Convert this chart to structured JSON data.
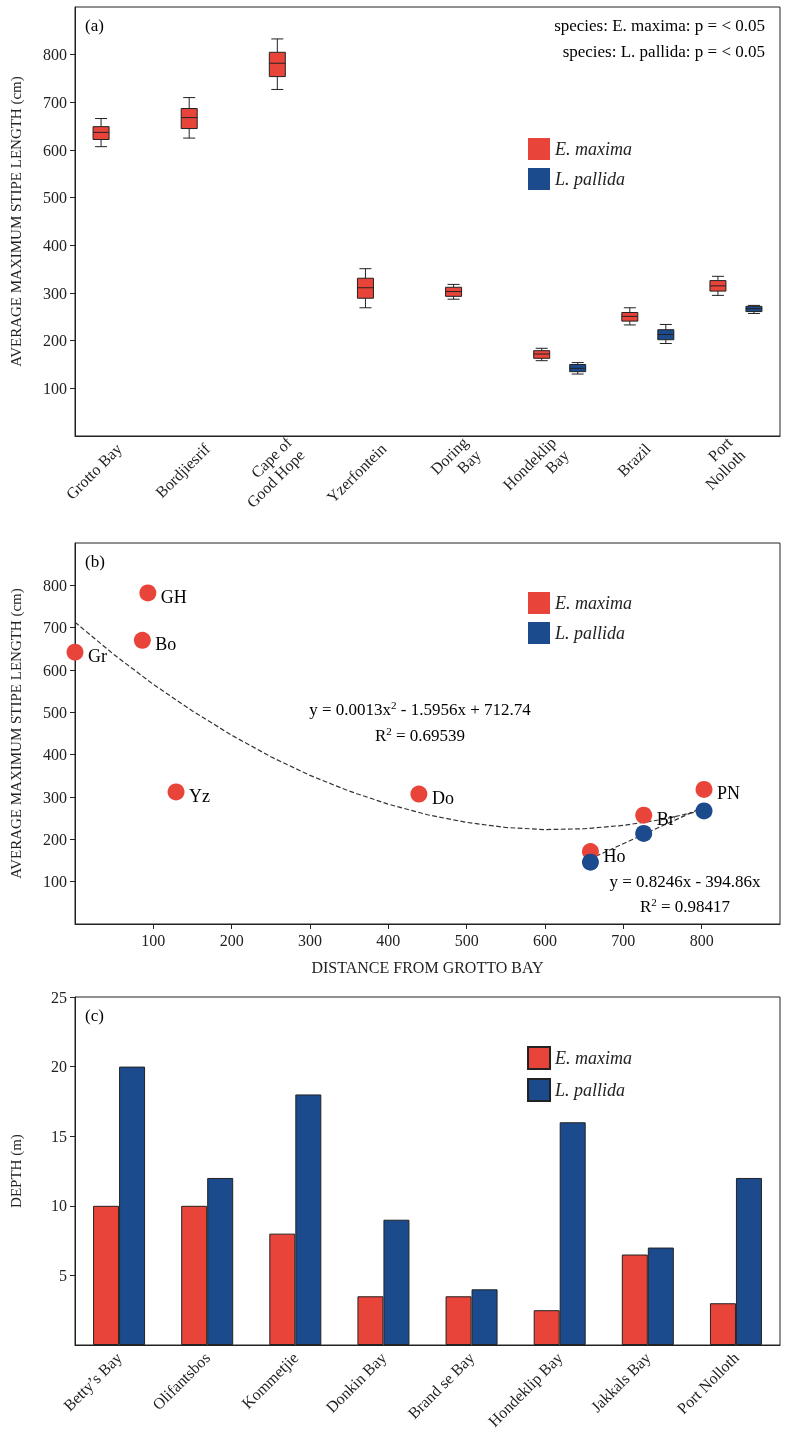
{
  "chart_data": [
    {
      "type": "box",
      "ylabel": "AVERAGE MAXIMUM STIPE LENGTH (cm)",
      "categories": [
        "Grotto Bay",
        "Bordjiesrif",
        "Cape of\nGood Hope",
        "Yzerfontein",
        "Doring\nBay",
        "Hondeklip\nBay",
        "Brazil",
        "Port\nNolloth"
      ],
      "series": [
        {
          "name": "E. maxima",
          "color": "#e8443a",
          "boxes": [
            {
              "low": 607,
              "q1": 622,
              "median": 637,
              "q3": 649,
              "high": 666
            },
            {
              "low": 625,
              "q1": 645,
              "median": 668,
              "q3": 687,
              "high": 710
            },
            {
              "low": 727,
              "q1": 754,
              "median": 782,
              "q3": 805,
              "high": 833
            },
            {
              "low": 269,
              "q1": 289,
              "median": 311,
              "q3": 331,
              "high": 351
            },
            {
              "low": 287,
              "q1": 293,
              "median": 303,
              "q3": 312,
              "high": 318
            },
            {
              "low": 158,
              "q1": 163,
              "median": 172,
              "q3": 179,
              "high": 184
            },
            {
              "low": 233,
              "q1": 241,
              "median": 251,
              "q3": 259,
              "high": 269
            },
            {
              "low": 295,
              "q1": 304,
              "median": 315,
              "q3": 326,
              "high": 335
            }
          ]
        },
        {
          "name": "L. pallida",
          "color": "#1b4b8c",
          "boxes": [
            null,
            null,
            null,
            null,
            null,
            {
              "low": 130,
              "q1": 135,
              "median": 142,
              "q3": 150,
              "high": 154
            },
            {
              "low": 194,
              "q1": 202,
              "median": 213,
              "q3": 223,
              "high": 234
            },
            {
              "low": 257,
              "q1": 261,
              "median": 267,
              "q3": 272,
              "high": 274
            }
          ]
        }
      ],
      "ylim": [
        0,
        900
      ],
      "yticks": [
        100,
        200,
        300,
        400,
        500,
        600,
        700,
        800
      ],
      "legend": "top right",
      "annotations": [
        "(a)",
        "species: E. maxima: p = < 0.05",
        "species: L. pallida: p = < 0.05"
      ]
    },
    {
      "type": "scatter",
      "xlabel": "DISTANCE FROM GROTTO BAY",
      "ylabel": "AVERAGE MAXIMUM STIPE LENGTH (cm)",
      "series": [
        {
          "name": "E. maxima",
          "color": "#e8443a",
          "x": [
            0,
            86,
            93,
            129,
            439,
            658,
            726,
            803
          ],
          "values": [
            642,
            670,
            782,
            312,
            307,
            171,
            257,
            318
          ]
        },
        {
          "name": "L. pallida",
          "color": "#1b4b8c",
          "x": [
            658,
            726,
            803
          ],
          "values": [
            146,
            214,
            267
          ]
        },
        {
          "type": "line",
          "color": "#333333",
          "marker": "none",
          "line_style": "dashed",
          "x": [
            0,
            50,
            100,
            150,
            200,
            250,
            300,
            350,
            400,
            450,
            500,
            550,
            600,
            650,
            700,
            750,
            800
          ],
          "values": [
            713,
            636,
            566,
            503,
            446,
            395,
            351,
            314,
            283,
            258,
            240,
            228,
            223,
            225,
            233,
            247,
            268
          ]
        },
        {
          "type": "line",
          "color": "#333333",
          "marker": "none",
          "line_style": "dashed",
          "x": [
            665,
            795
          ],
          "values": [
            160,
            270
          ]
        }
      ],
      "marker": "circle",
      "xlim": [
        0,
        900
      ],
      "xticks": [
        100,
        200,
        300,
        400,
        500,
        600,
        700,
        800
      ],
      "ylim": [
        0,
        900
      ],
      "yticks": [
        100,
        200,
        300,
        400,
        500,
        600,
        700,
        800
      ],
      "legend": "top right",
      "annotations": [
        "(b)",
        {
          "text": "Gr",
          "x": 0,
          "y": 642
        },
        {
          "text": "Bo",
          "x": 86,
          "y": 670
        },
        {
          "text": "GH",
          "x": 93,
          "y": 782
        },
        {
          "text": "Yz",
          "x": 129,
          "y": 312
        },
        {
          "text": "Do",
          "x": 439,
          "y": 307
        },
        {
          "text": "Ho",
          "x": 658,
          "y": 171
        },
        {
          "text": "Br",
          "x": 726,
          "y": 257
        },
        {
          "text": "PN",
          "x": 803,
          "y": 318
        },
        "y = 0.0013x$^{2}$ - 1.5956x + 712.74",
        "R$^{2}$ = 0.69539",
        "y = 0.8246x - 394.86x",
        "R$^{2}$ = 0.98417"
      ]
    },
    {
      "type": "bar",
      "ylabel": "DEPTH (m)",
      "categories": [
        "Betty’s Bay",
        "Olifantsbos",
        "Kommetjie",
        "Donkin Bay",
        "Brand se Bay",
        "Hondeklip Bay",
        "Jakkals Bay",
        "Port Nolloth"
      ],
      "series": [
        {
          "name": "E. maxima",
          "color": "#e8443a",
          "values": [
            10,
            10,
            8,
            3.5,
            3.5,
            2.5,
            6.5,
            3
          ]
        },
        {
          "name": "L. pallida",
          "color": "#1b4b8c",
          "values": [
            20,
            12,
            18,
            9,
            4,
            16,
            7,
            12
          ]
        }
      ],
      "ylim": [
        0,
        25
      ],
      "yticks": [
        5,
        10,
        15,
        20,
        25
      ],
      "legend": "top right",
      "annotations": [
        "(c)"
      ]
    }
  ]
}
